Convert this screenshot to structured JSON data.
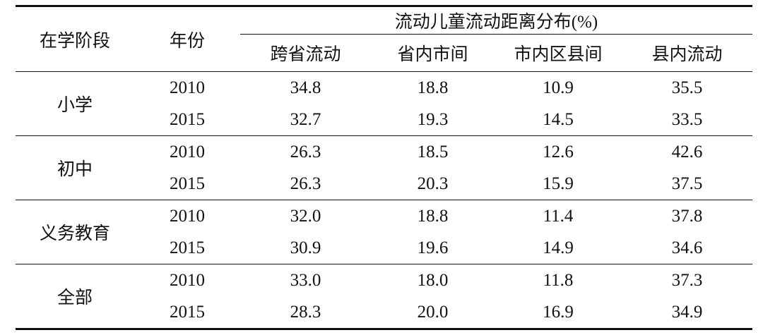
{
  "table": {
    "header": {
      "stage": "在学阶段",
      "year": "年份",
      "group": "流动儿童流动距离分布(%)",
      "columns": [
        "跨省流动",
        "省内市间",
        "市内区县间",
        "县内流动"
      ]
    },
    "groups": [
      {
        "name": "小学",
        "rows": [
          {
            "year": "2010",
            "values": [
              "34.8",
              "18.8",
              "10.9",
              "35.5"
            ]
          },
          {
            "year": "2015",
            "values": [
              "32.7",
              "19.3",
              "14.5",
              "33.5"
            ]
          }
        ]
      },
      {
        "name": "初中",
        "rows": [
          {
            "year": "2010",
            "values": [
              "26.3",
              "18.5",
              "12.6",
              "42.6"
            ]
          },
          {
            "year": "2015",
            "values": [
              "26.3",
              "20.3",
              "15.9",
              "37.5"
            ]
          }
        ]
      },
      {
        "name": "义务教育",
        "rows": [
          {
            "year": "2010",
            "values": [
              "32.0",
              "18.8",
              "11.4",
              "37.8"
            ]
          },
          {
            "year": "2015",
            "values": [
              "30.9",
              "19.6",
              "14.9",
              "34.6"
            ]
          }
        ]
      },
      {
        "name": "全部",
        "rows": [
          {
            "year": "2010",
            "values": [
              "33.0",
              "18.0",
              "11.8",
              "37.3"
            ]
          },
          {
            "year": "2015",
            "values": [
              "28.3",
              "20.0",
              "16.9",
              "34.9"
            ]
          }
        ]
      }
    ]
  }
}
